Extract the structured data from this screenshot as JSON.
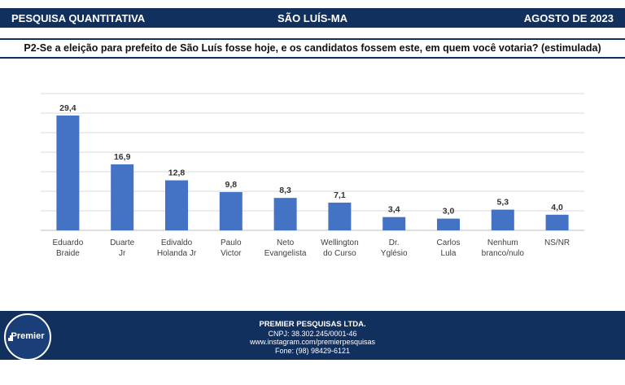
{
  "header": {
    "left": "PESQUISA QUANTITATIVA",
    "center": "SÃO LUÍS-MA",
    "right": "AGOSTO DE 2023"
  },
  "question": "P2-Se a eleição para prefeito de São Luís fosse hoje, e os candidatos fossem este, em quem você votaria? (estimulada)",
  "chart_data": {
    "type": "bar",
    "title": "",
    "xlabel": "",
    "ylabel": "",
    "categories": [
      [
        "Eduardo",
        "Braide"
      ],
      [
        "Duarte",
        "Jr"
      ],
      [
        "Edivaldo",
        "Holanda Jr"
      ],
      [
        "Paulo",
        "Victor"
      ],
      [
        "Neto",
        "Evangelista"
      ],
      [
        "Wellington",
        "do Curso"
      ],
      [
        "Dr.",
        "Yglésio"
      ],
      [
        "Carlos",
        "Lula"
      ],
      [
        "Nenhum",
        "branco/nulo"
      ],
      [
        "NS/NR"
      ]
    ],
    "values": [
      29.4,
      16.9,
      12.8,
      9.8,
      8.3,
      7.1,
      3.4,
      3.0,
      5.3,
      4.0
    ],
    "value_labels": [
      "29,4",
      "16,9",
      "12,8",
      "9,8",
      "8,3",
      "7,1",
      "3,4",
      "3,0",
      "5,3",
      "4,0"
    ],
    "ylim": [
      0,
      35
    ],
    "grid": true,
    "bar_color": "#4472c4"
  },
  "footer": {
    "logo_text": "Premier",
    "company": "PREMIER PESQUISAS LTDA.",
    "cnpj": "CNPJ: 38.302.245/0001-46",
    "instagram": "www.instagram.com/premierpesquisas",
    "phone": "Fone: (98) 98429-6121"
  }
}
